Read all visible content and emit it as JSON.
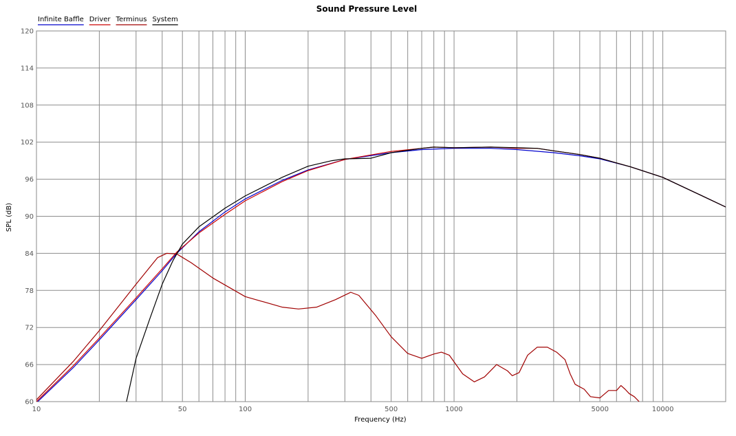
{
  "chart_data": {
    "type": "line",
    "title": "Sound Pressure Level",
    "xlabel": "Frequency (Hz)",
    "ylabel": "SPL (dB)",
    "x_scale": "log",
    "xlim": [
      10,
      20000
    ],
    "ylim": [
      60,
      120
    ],
    "x_tick_labels": [
      "10",
      "50",
      "100",
      "500",
      "1000",
      "5000",
      "10000"
    ],
    "x_tick_values": [
      10,
      50,
      100,
      500,
      1000,
      5000,
      10000
    ],
    "y_ticks": [
      60,
      66,
      72,
      78,
      84,
      90,
      96,
      102,
      108,
      114,
      120
    ],
    "grid": true,
    "legend_position": "top-left",
    "series": [
      {
        "name": "Infinite Baffle",
        "color": "#0000cc",
        "points": [
          [
            10,
            59.8
          ],
          [
            15,
            65.5
          ],
          [
            20,
            70.0
          ],
          [
            30,
            76.5
          ],
          [
            40,
            81.2
          ],
          [
            47,
            84.0
          ],
          [
            60,
            87.5
          ],
          [
            80,
            90.7
          ],
          [
            100,
            92.8
          ],
          [
            150,
            95.8
          ],
          [
            200,
            97.5
          ],
          [
            300,
            99.2
          ],
          [
            500,
            100.3
          ],
          [
            700,
            100.8
          ],
          [
            1000,
            101.0
          ],
          [
            1500,
            101.0
          ],
          [
            2000,
            100.8
          ],
          [
            3000,
            100.3
          ],
          [
            4000,
            99.8
          ],
          [
            5000,
            99.3
          ],
          [
            7000,
            98.0
          ],
          [
            10000,
            96.3
          ],
          [
            15000,
            93.5
          ],
          [
            20000,
            91.5
          ]
        ]
      },
      {
        "name": "Driver",
        "color": "#cc0000",
        "points": [
          [
            10,
            60.0
          ],
          [
            15,
            65.8
          ],
          [
            20,
            70.3
          ],
          [
            30,
            76.8
          ],
          [
            40,
            81.5
          ],
          [
            47,
            84.2
          ],
          [
            60,
            87.3
          ],
          [
            80,
            90.3
          ],
          [
            100,
            92.5
          ],
          [
            150,
            95.6
          ],
          [
            200,
            97.4
          ],
          [
            300,
            99.2
          ],
          [
            500,
            100.5
          ],
          [
            700,
            101.0
          ],
          [
            800,
            101.2
          ],
          [
            1000,
            101.1
          ],
          [
            1500,
            101.2
          ],
          [
            2000,
            101.0
          ],
          [
            2500,
            101.0
          ],
          [
            3000,
            100.6
          ],
          [
            4000,
            100.0
          ],
          [
            5000,
            99.4
          ],
          [
            7000,
            98.0
          ],
          [
            10000,
            96.3
          ],
          [
            15000,
            93.5
          ],
          [
            20000,
            91.5
          ]
        ]
      },
      {
        "name": "Terminus",
        "color": "#a00000",
        "points": [
          [
            10,
            60.3
          ],
          [
            15,
            66.5
          ],
          [
            20,
            71.5
          ],
          [
            30,
            79.0
          ],
          [
            38,
            83.3
          ],
          [
            42,
            84.0
          ],
          [
            47,
            83.9
          ],
          [
            55,
            82.5
          ],
          [
            70,
            80.0
          ],
          [
            100,
            77.0
          ],
          [
            150,
            75.3
          ],
          [
            180,
            75.0
          ],
          [
            220,
            75.3
          ],
          [
            270,
            76.5
          ],
          [
            320,
            77.7
          ],
          [
            350,
            77.2
          ],
          [
            420,
            74.0
          ],
          [
            500,
            70.5
          ],
          [
            600,
            67.8
          ],
          [
            700,
            67.0
          ],
          [
            800,
            67.7
          ],
          [
            870,
            68.0
          ],
          [
            950,
            67.5
          ],
          [
            1100,
            64.5
          ],
          [
            1250,
            63.2
          ],
          [
            1400,
            64.0
          ],
          [
            1600,
            66.0
          ],
          [
            1800,
            65.0
          ],
          [
            1900,
            64.2
          ],
          [
            2050,
            64.7
          ],
          [
            2250,
            67.5
          ],
          [
            2500,
            68.8
          ],
          [
            2800,
            68.8
          ],
          [
            3100,
            68.0
          ],
          [
            3400,
            66.8
          ],
          [
            3600,
            64.5
          ],
          [
            3800,
            62.8
          ],
          [
            4200,
            62.0
          ],
          [
            4500,
            60.8
          ],
          [
            5000,
            60.6
          ],
          [
            5500,
            61.8
          ],
          [
            6000,
            61.8
          ],
          [
            6300,
            62.6
          ],
          [
            6600,
            62.0
          ],
          [
            6900,
            61.3
          ],
          [
            7300,
            60.8
          ],
          [
            7700,
            60.0
          ]
        ]
      },
      {
        "name": "System",
        "color": "#000000",
        "points": [
          [
            27,
            60.0
          ],
          [
            30,
            67.0
          ],
          [
            35,
            73.5
          ],
          [
            40,
            79.0
          ],
          [
            45,
            82.8
          ],
          [
            50,
            85.5
          ],
          [
            60,
            88.3
          ],
          [
            80,
            91.3
          ],
          [
            100,
            93.3
          ],
          [
            150,
            96.3
          ],
          [
            200,
            98.1
          ],
          [
            260,
            99.0
          ],
          [
            300,
            99.3
          ],
          [
            400,
            99.4
          ],
          [
            500,
            100.3
          ],
          [
            700,
            101.0
          ],
          [
            800,
            101.2
          ],
          [
            1000,
            101.1
          ],
          [
            1500,
            101.2
          ],
          [
            2000,
            101.1
          ],
          [
            2500,
            101.0
          ],
          [
            3000,
            100.6
          ],
          [
            4000,
            100.0
          ],
          [
            5000,
            99.4
          ],
          [
            7000,
            98.0
          ],
          [
            10000,
            96.3
          ],
          [
            15000,
            93.5
          ],
          [
            20000,
            91.5
          ]
        ]
      }
    ]
  }
}
